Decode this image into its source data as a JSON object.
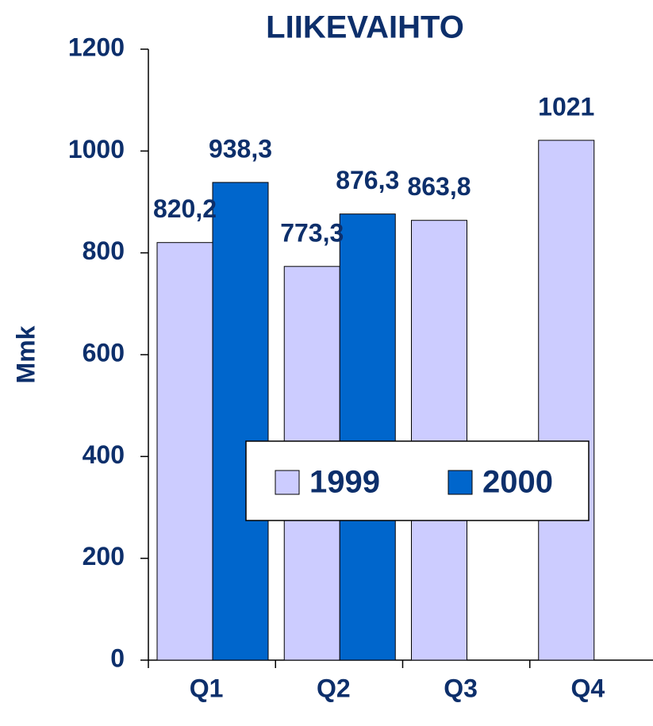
{
  "chart_data": {
    "type": "bar",
    "title": "LIIKEVAIHTO",
    "y_label": "Mmk",
    "categories": [
      "Q1",
      "Q2",
      "Q3",
      "Q4"
    ],
    "series": [
      {
        "name": "1999",
        "color": "#ccccff",
        "values": [
          820.2,
          773.3,
          863.8,
          1021
        ],
        "value_labels": [
          "820,2",
          "773,3",
          "863,8",
          "1021"
        ]
      },
      {
        "name": "2000",
        "color": "#0066cc",
        "values": [
          938.3,
          876.3,
          null,
          null
        ],
        "value_labels": [
          "938,3",
          "876,3",
          null,
          null
        ]
      }
    ],
    "ylim": [
      0,
      1200
    ],
    "yticks": [
      0,
      200,
      400,
      600,
      800,
      1000,
      1200
    ],
    "grid": false,
    "legend": "center"
  }
}
